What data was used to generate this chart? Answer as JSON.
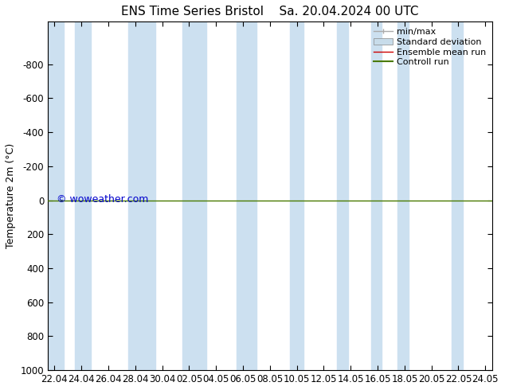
{
  "title": "ENS Time Series Bristol",
  "title2": "Sa. 20.04.2024 00 UTC",
  "ylabel": "Temperature 2m (°C)",
  "watermark": "© woweather.com",
  "watermark_color": "#0000cc",
  "background_color": "#ffffff",
  "plot_bg_color": "#ffffff",
  "ylim_bottom": 1000,
  "ylim_top": -1050,
  "yticks": [
    -800,
    -600,
    -400,
    -200,
    0,
    200,
    400,
    600,
    800,
    1000
  ],
  "x_tick_labels": [
    "22.04",
    "24.04",
    "26.04",
    "28.04",
    "30.04",
    "02.05",
    "04.05",
    "06.05",
    "08.05",
    "10.05",
    "12.05",
    "14.05",
    "16.05",
    "18.05",
    "20.05",
    "22.05",
    "24.05"
  ],
  "x_tick_values": [
    0,
    2,
    4,
    6,
    8,
    10,
    12,
    14,
    16,
    18,
    20,
    22,
    24,
    26,
    28,
    30,
    32
  ],
  "shaded_bands": [
    [
      -0.5,
      0.7
    ],
    [
      1.5,
      2.7
    ],
    [
      5.5,
      7.5
    ],
    [
      9.5,
      11.3
    ],
    [
      13.5,
      15.0
    ],
    [
      17.5,
      18.5
    ],
    [
      21.0,
      21.8
    ],
    [
      23.5,
      24.3
    ],
    [
      25.5,
      26.3
    ],
    [
      29.5,
      30.3
    ]
  ],
  "shaded_color": "#cce0f0",
  "shaded_alpha": 1.0,
  "green_line_y": 0,
  "green_line_color": "#4a7a00",
  "red_line_color": "#cc0000",
  "legend_entries": [
    {
      "label": "min/max",
      "color": "#aaaaaa",
      "lw": 1.0,
      "type": "line_with_caps"
    },
    {
      "label": "Standard deviation",
      "color": "#c8dcea",
      "lw": 8,
      "type": "patch"
    },
    {
      "label": "Ensemble mean run",
      "color": "#cc0000",
      "lw": 1.0,
      "type": "line"
    },
    {
      "label": "Controll run",
      "color": "#4a7a00",
      "lw": 1.5,
      "type": "line"
    }
  ],
  "title_fontsize": 11,
  "axis_fontsize": 9,
  "tick_fontsize": 8.5,
  "watermark_fontsize": 9,
  "legend_fontsize": 8
}
